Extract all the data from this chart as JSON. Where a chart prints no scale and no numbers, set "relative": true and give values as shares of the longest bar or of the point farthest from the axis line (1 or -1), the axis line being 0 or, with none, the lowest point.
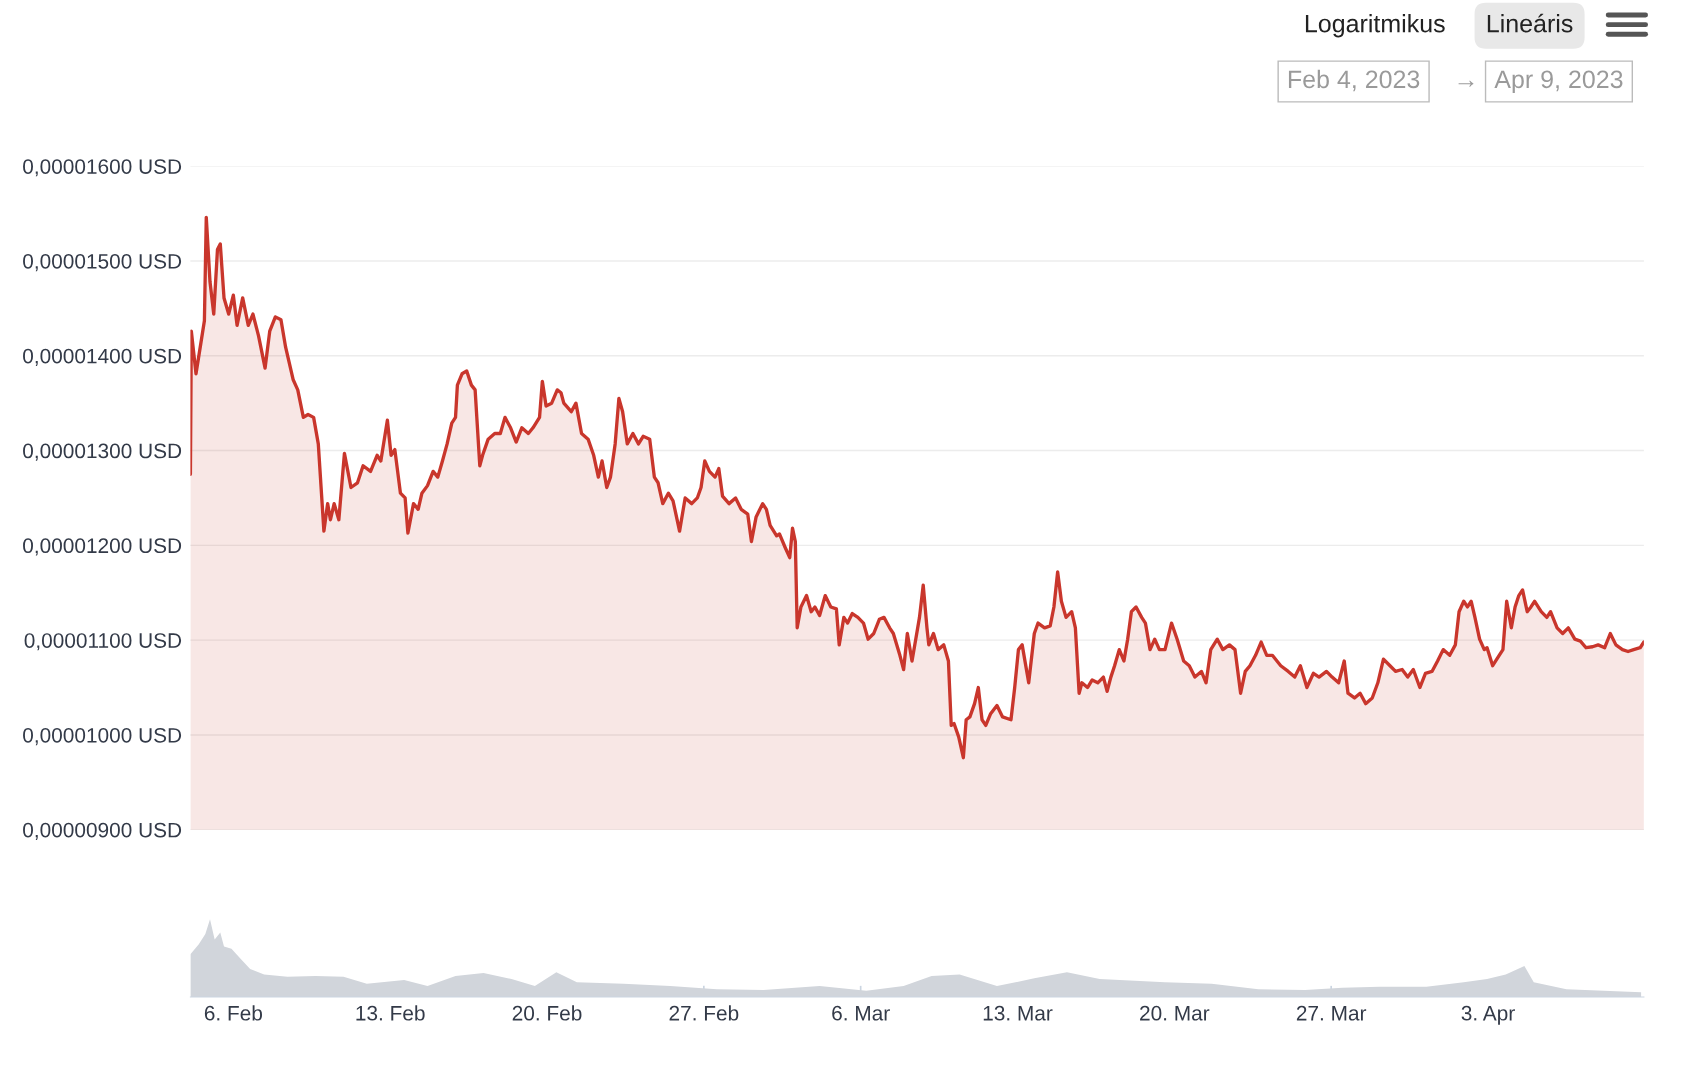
{
  "chart_data": [
    {
      "type": "area",
      "annotations": [
        "Logaritmikus",
        "Lineáris",
        "Feb 4, 2023",
        "→",
        "Apr 9, 2023"
      ],
      "x": [
        "2023-02-04T02:00",
        "2023-02-04T03:00",
        "2023-02-04T08:00",
        "2023-02-04T13:00",
        "2023-02-04T17:00",
        "2023-02-04T19:00",
        "2023-02-04T23:00",
        "2023-02-05T03:00",
        "2023-02-05T07:00",
        "2023-02-05T10:00",
        "2023-02-05T14:00",
        "2023-02-05T19:00",
        "2023-02-06T00:00",
        "2023-02-06T04:00",
        "2023-02-06T10:00",
        "2023-02-06T16:00",
        "2023-02-06T21:00",
        "2023-02-07T03:00",
        "2023-02-07T10:00",
        "2023-02-07T15:00",
        "2023-02-07T21:00",
        "2023-02-08T03:00",
        "2023-02-08T08:00",
        "2023-02-08T16:00",
        "2023-02-08T21:00",
        "2023-02-09T03:00",
        "2023-02-09T08:00",
        "2023-02-09T14:00",
        "2023-02-09T19:00",
        "2023-02-10T01:00",
        "2023-02-10T05:00",
        "2023-02-10T08:00",
        "2023-02-10T12:00",
        "2023-02-10T17:00",
        "2023-02-10T23:00",
        "2023-02-11T06:00",
        "2023-02-11T13:00",
        "2023-02-11T19:00",
        "2023-02-12T03:00",
        "2023-02-12T10:00",
        "2023-02-12T14:00",
        "2023-02-12T21:00",
        "2023-02-13T01:00",
        "2023-02-13T05:00",
        "2023-02-13T11:00",
        "2023-02-13T16:00",
        "2023-02-13T19:00",
        "2023-02-14T01:00",
        "2023-02-14T06:00",
        "2023-02-14T10:00",
        "2023-02-14T16:00",
        "2023-02-14T22:00",
        "2023-02-15T03:00",
        "2023-02-15T08:00",
        "2023-02-15T13:00",
        "2023-02-15T18:00",
        "2023-02-15T22:00",
        "2023-02-16T00:00",
        "2023-02-16T05:00",
        "2023-02-16T10:00",
        "2023-02-16T15:00",
        "2023-02-16T19:00",
        "2023-02-17T00:00",
        "2023-02-17T03:00",
        "2023-02-17T09:00",
        "2023-02-17T16:00",
        "2023-02-17T22:00",
        "2023-02-18T03:00",
        "2023-02-18T09:00",
        "2023-02-18T15:00",
        "2023-02-18T21:00",
        "2023-02-19T04:00",
        "2023-02-19T09:00",
        "2023-02-19T16:00",
        "2023-02-19T19:00",
        "2023-02-19T23:00",
        "2023-02-20T05:00",
        "2023-02-20T11:00",
        "2023-02-20T15:00",
        "2023-02-20T18:00",
        "2023-02-21T02:00",
        "2023-02-21T07:00",
        "2023-02-21T13:00",
        "2023-02-21T20:00",
        "2023-02-22T02:00",
        "2023-02-22T07:00",
        "2023-02-22T11:00",
        "2023-02-22T16:00",
        "2023-02-22T20:00",
        "2023-02-23T01:00",
        "2023-02-23T05:00",
        "2023-02-23T09:00",
        "2023-02-23T14:00",
        "2023-02-23T20:00",
        "2023-02-24T02:00",
        "2023-02-24T07:00",
        "2023-02-24T14:00",
        "2023-02-24T19:00",
        "2023-02-24T23:00",
        "2023-02-25T04:00",
        "2023-02-25T10:00",
        "2023-02-25T15:00",
        "2023-02-25T22:00",
        "2023-02-26T04:00",
        "2023-02-26T11:00",
        "2023-02-26T17:00",
        "2023-02-26T21:00",
        "2023-02-27T01:00",
        "2023-02-27T06:00",
        "2023-02-27T12:00",
        "2023-02-27T16:00",
        "2023-02-27T20:00",
        "2023-02-28T03:00",
        "2023-02-28T10:00",
        "2023-02-28T16:00",
        "2023-02-28T23:00",
        "2023-03-01T03:00",
        "2023-03-01T08:00",
        "2023-03-01T15:00",
        "2023-03-01T19:00",
        "2023-03-01T23:00",
        "2023-03-02T06:00",
        "2023-03-02T09:00",
        "2023-03-02T15:00",
        "2023-03-02T20:00",
        "2023-03-02T23:00",
        "2023-03-03T02:00",
        "2023-03-03T04:00",
        "2023-03-03T08:00",
        "2023-03-03T14:00",
        "2023-03-03T19:00",
        "2023-03-03T23:00",
        "2023-03-04T04:00",
        "2023-03-04T10:00",
        "2023-03-04T16:00",
        "2023-03-04T22:00",
        "2023-03-05T01:00",
        "2023-03-05T06:00",
        "2023-03-05T10:00",
        "2023-03-05T15:00",
        "2023-03-05T21:00",
        "2023-03-06T03:00",
        "2023-03-06T08:00",
        "2023-03-06T14:00",
        "2023-03-06T20:00",
        "2023-03-07T01:00",
        "2023-03-07T07:00",
        "2023-03-07T11:00",
        "2023-03-07T18:00",
        "2023-03-07T22:00",
        "2023-03-08T02:00",
        "2023-03-08T07:00",
        "2023-03-08T11:00",
        "2023-03-08T15:00",
        "2023-03-08T19:00",
        "2023-03-08T23:00",
        "2023-03-09T01:00",
        "2023-03-09T06:00",
        "2023-03-09T11:00",
        "2023-03-09T17:00",
        "2023-03-09T22:00",
        "2023-03-10T01:00",
        "2023-03-10T04:00",
        "2023-03-10T09:00",
        "2023-03-10T14:00",
        "2023-03-10T17:00",
        "2023-03-10T21:00",
        "2023-03-11T02:00",
        "2023-03-11T06:00",
        "2023-03-11T10:00",
        "2023-03-11T14:00",
        "2023-03-11T19:00",
        "2023-03-12T02:00",
        "2023-03-12T08:00",
        "2023-03-12T17:00",
        "2023-03-12T21:00",
        "2023-03-13T01:00",
        "2023-03-13T05:00",
        "2023-03-13T12:00",
        "2023-03-13T18:00",
        "2023-03-13T22:00",
        "2023-03-14T05:00",
        "2023-03-14T11:00",
        "2023-03-14T15:00",
        "2023-03-14T19:00",
        "2023-03-14T23:00",
        "2023-03-15T04:00",
        "2023-03-15T10:00",
        "2023-03-15T14:00",
        "2023-03-15T18:00",
        "2023-03-15T21:00",
        "2023-03-16T03:00",
        "2023-03-16T08:00",
        "2023-03-16T14:00",
        "2023-03-16T20:00",
        "2023-03-17T00:00",
        "2023-03-17T04:00",
        "2023-03-17T08:00",
        "2023-03-17T13:00",
        "2023-03-17T18:00",
        "2023-03-17T22:00",
        "2023-03-18T02:00",
        "2023-03-18T07:00",
        "2023-03-18T13:00",
        "2023-03-18T17:00",
        "2023-03-18T22:00",
        "2023-03-19T03:00",
        "2023-03-19T08:00",
        "2023-03-19T14:00",
        "2023-03-19T21:00",
        "2023-03-20T03:00",
        "2023-03-20T10:00",
        "2023-03-20T16:00",
        "2023-03-20T22:00",
        "2023-03-21T05:00",
        "2023-03-21T10:00",
        "2023-03-21T15:00",
        "2023-03-21T22:00",
        "2023-03-22T04:00",
        "2023-03-22T11:00",
        "2023-03-22T17:00",
        "2023-03-22T23:00",
        "2023-03-23T04:00",
        "2023-03-23T09:00",
        "2023-03-23T15:00",
        "2023-03-23T21:00",
        "2023-03-24T03:00",
        "2023-03-24T09:00",
        "2023-03-24T18:00",
        "2023-03-25T02:00",
        "2023-03-25T09:00",
        "2023-03-25T15:00",
        "2023-03-25T22:00",
        "2023-03-26T05:00",
        "2023-03-26T11:00",
        "2023-03-26T19:00",
        "2023-03-27T01:00",
        "2023-03-27T08:00",
        "2023-03-27T14:00",
        "2023-03-27T18:00",
        "2023-03-28T01:00",
        "2023-03-28T07:00",
        "2023-03-28T13:00",
        "2023-03-28T20:00",
        "2023-03-29T02:00",
        "2023-03-29T08:00",
        "2023-03-29T15:00",
        "2023-03-29T21:00",
        "2023-03-30T04:00",
        "2023-03-30T10:00",
        "2023-03-30T16:00",
        "2023-03-30T23:00",
        "2023-03-31T05:00",
        "2023-03-31T12:00",
        "2023-03-31T18:00",
        "2023-04-01T00:00",
        "2023-04-01T07:00",
        "2023-04-01T13:00",
        "2023-04-01T17:00",
        "2023-04-01T22:00",
        "2023-04-02T02:00",
        "2023-04-02T06:00",
        "2023-04-02T10:00",
        "2023-04-02T15:00",
        "2023-04-02T20:00",
        "2023-04-02T23:00",
        "2023-04-03T05:00",
        "2023-04-03T12:00",
        "2023-04-03T16:00",
        "2023-04-03T20:00",
        "2023-04-04T01:00",
        "2023-04-04T05:00",
        "2023-04-04T09:00",
        "2023-04-04T13:00",
        "2023-04-04T18:00",
        "2023-04-04T22:00",
        "2023-04-05T02:00",
        "2023-04-05T09:00",
        "2023-04-05T15:00",
        "2023-04-05T19:00",
        "2023-04-06T02:00",
        "2023-04-06T08:00",
        "2023-04-06T14:00",
        "2023-04-06T21:00",
        "2023-04-07T03:00",
        "2023-04-07T09:00",
        "2023-04-07T16:00",
        "2023-04-07T22:00",
        "2023-04-08T05:00",
        "2023-04-08T11:00",
        "2023-04-08T17:00",
        "2023-04-09T00:00",
        "2023-04-09T06:00",
        "2023-04-09T12:00",
        "2023-04-09T19:00",
        "2023-04-09T23:00"
      ],
      "series": [
        {
          "color": "#c9362c",
          "values": [
            1.275e-05,
            1.426e-05,
            1.381e-05,
            1.412e-05,
            1.437e-05,
            1.546e-05,
            1.478e-05,
            1.444e-05,
            1.512e-05,
            1.518e-05,
            1.461e-05,
            1.444e-05,
            1.464e-05,
            1.432e-05,
            1.461e-05,
            1.432e-05,
            1.444e-05,
            1.421e-05,
            1.387e-05,
            1.426e-05,
            1.441e-05,
            1.438e-05,
            1.409e-05,
            1.375e-05,
            1.364e-05,
            1.335e-05,
            1.338e-05,
            1.335e-05,
            1.307e-05,
            1.215e-05,
            1.244e-05,
            1.227e-05,
            1.244e-05,
            1.227e-05,
            1.297e-05,
            1.261e-05,
            1.266e-05,
            1.284e-05,
            1.278e-05,
            1.295e-05,
            1.289e-05,
            1.332e-05,
            1.295e-05,
            1.301e-05,
            1.255e-05,
            1.25e-05,
            1.213e-05,
            1.244e-05,
            1.238e-05,
            1.255e-05,
            1.263e-05,
            1.278e-05,
            1.272e-05,
            1.289e-05,
            1.307e-05,
            1.329e-05,
            1.335e-05,
            1.369e-05,
            1.381e-05,
            1.384e-05,
            1.369e-05,
            1.364e-05,
            1.284e-05,
            1.295e-05,
            1.312e-05,
            1.318e-05,
            1.318e-05,
            1.335e-05,
            1.324e-05,
            1.309e-05,
            1.324e-05,
            1.318e-05,
            1.324e-05,
            1.335e-05,
            1.373e-05,
            1.347e-05,
            1.35e-05,
            1.364e-05,
            1.361e-05,
            1.35e-05,
            1.341e-05,
            1.35e-05,
            1.318e-05,
            1.312e-05,
            1.295e-05,
            1.272e-05,
            1.289e-05,
            1.261e-05,
            1.272e-05,
            1.307e-05,
            1.355e-05,
            1.341e-05,
            1.307e-05,
            1.318e-05,
            1.307e-05,
            1.315e-05,
            1.312e-05,
            1.272e-05,
            1.266e-05,
            1.244e-05,
            1.255e-05,
            1.247e-05,
            1.215e-05,
            1.25e-05,
            1.244e-05,
            1.25e-05,
            1.261e-05,
            1.289e-05,
            1.278e-05,
            1.272e-05,
            1.281e-05,
            1.252e-05,
            1.244e-05,
            1.25e-05,
            1.238e-05,
            1.233e-05,
            1.204e-05,
            1.23e-05,
            1.244e-05,
            1.238e-05,
            1.221e-05,
            1.21e-05,
            1.212e-05,
            1.198e-05,
            1.187e-05,
            1.218e-05,
            1.204e-05,
            1.113e-05,
            1.135e-05,
            1.147e-05,
            1.13e-05,
            1.135e-05,
            1.126e-05,
            1.147e-05,
            1.135e-05,
            1.133e-05,
            1.095e-05,
            1.124e-05,
            1.118e-05,
            1.128e-05,
            1.124e-05,
            1.118e-05,
            1.101e-05,
            1.107e-05,
            1.122e-05,
            1.124e-05,
            1.113e-05,
            1.107e-05,
            1.084e-05,
            1.069e-05,
            1.107e-05,
            1.078e-05,
            1.101e-05,
            1.124e-05,
            1.158e-05,
            1.113e-05,
            1.095e-05,
            1.107e-05,
            1.09e-05,
            1.095e-05,
            1.078e-05,
            1.01e-05,
            1.012e-05,
            9.98e-06,
            9.76e-06,
            1.016e-05,
            1.019e-05,
            1.033e-05,
            1.05e-05,
            1.016e-05,
            1.01e-05,
            1.022e-05,
            1.031e-05,
            1.019e-05,
            1.016e-05,
            1.05e-05,
            1.09e-05,
            1.095e-05,
            1.055e-05,
            1.107e-05,
            1.118e-05,
            1.113e-05,
            1.115e-05,
            1.135e-05,
            1.172e-05,
            1.141e-05,
            1.124e-05,
            1.13e-05,
            1.113e-05,
            1.044e-05,
            1.055e-05,
            1.05e-05,
            1.058e-05,
            1.055e-05,
            1.061e-05,
            1.046e-05,
            1.061e-05,
            1.073e-05,
            1.09e-05,
            1.078e-05,
            1.101e-05,
            1.13e-05,
            1.135e-05,
            1.124e-05,
            1.118e-05,
            1.09e-05,
            1.101e-05,
            1.09e-05,
            1.09e-05,
            1.118e-05,
            1.101e-05,
            1.078e-05,
            1.073e-05,
            1.061e-05,
            1.067e-05,
            1.055e-05,
            1.09e-05,
            1.101e-05,
            1.09e-05,
            1.095e-05,
            1.09e-05,
            1.044e-05,
            1.067e-05,
            1.073e-05,
            1.084e-05,
            1.098e-05,
            1.084e-05,
            1.084e-05,
            1.073e-05,
            1.067e-05,
            1.061e-05,
            1.073e-05,
            1.05e-05,
            1.065e-05,
            1.061e-05,
            1.067e-05,
            1.061e-05,
            1.055e-05,
            1.078e-05,
            1.044e-05,
            1.039e-05,
            1.044e-05,
            1.033e-05,
            1.039e-05,
            1.055e-05,
            1.08e-05,
            1.073e-05,
            1.067e-05,
            1.069e-05,
            1.061e-05,
            1.069e-05,
            1.05e-05,
            1.065e-05,
            1.067e-05,
            1.078e-05,
            1.09e-05,
            1.084e-05,
            1.095e-05,
            1.13e-05,
            1.141e-05,
            1.135e-05,
            1.141e-05,
            1.124e-05,
            1.101e-05,
            1.09e-05,
            1.092e-05,
            1.073e-05,
            1.084e-05,
            1.09e-05,
            1.141e-05,
            1.113e-05,
            1.135e-05,
            1.147e-05,
            1.153e-05,
            1.13e-05,
            1.135e-05,
            1.141e-05,
            1.13e-05,
            1.124e-05,
            1.13e-05,
            1.113e-05,
            1.107e-05,
            1.113e-05,
            1.101e-05,
            1.099e-05,
            1.092e-05,
            1.093e-05,
            1.095e-05,
            1.092e-05,
            1.107e-05,
            1.095e-05,
            1.09e-05,
            1.088e-05,
            1.09e-05,
            1.092e-05,
            1.098e-05
          ]
        }
      ],
      "xlim": [
        "2023-02-04T02:00",
        "2023-04-09T23:00"
      ],
      "ylim": [
        9e-06,
        1.6e-05
      ],
      "yticks": [
        {
          "value": 9e-06,
          "label": "0,00000900 USD"
        },
        {
          "value": 1e-05,
          "label": "0,00001000 USD"
        },
        {
          "value": 1.1e-05,
          "label": "0,00001100 USD"
        },
        {
          "value": 1.2e-05,
          "label": "0,00001200 USD"
        },
        {
          "value": 1.3e-05,
          "label": "0,00001300 USD"
        },
        {
          "value": 1.4e-05,
          "label": "0,00001400 USD"
        },
        {
          "value": 1.5e-05,
          "label": "0,00001500 USD"
        },
        {
          "value": 1.6e-05,
          "label": "0,00001600 USD"
        }
      ],
      "grid": "y",
      "tick_labels": "y"
    },
    {
      "type": "area",
      "relative": true,
      "x": [
        "2023-02-04T02:00",
        "2023-02-04T11:00",
        "2023-02-04T18:00",
        "2023-02-04T23:00",
        "2023-02-05T04:00",
        "2023-02-05T10:00",
        "2023-02-05T14:00",
        "2023-02-05T22:00",
        "2023-02-06T08:00",
        "2023-02-06T18:00",
        "2023-02-07T09:00",
        "2023-02-08T10:00",
        "2023-02-09T16:00",
        "2023-02-10T22:00",
        "2023-02-11T23:00",
        "2023-02-13T15:00",
        "2023-02-14T16:00",
        "2023-02-15T22:00",
        "2023-02-17T04:00",
        "2023-02-18T10:00",
        "2023-02-19T11:00",
        "2023-02-20T10:00",
        "2023-02-21T08:00",
        "2023-02-23T10:00",
        "2023-02-25T12:00",
        "2023-02-27T14:00",
        "2023-03-01T16:00",
        "2023-03-04T04:00",
        "2023-03-06T06:00",
        "2023-03-07T22:00",
        "2023-03-09T04:00",
        "2023-03-10T10:00",
        "2023-03-12T02:00",
        "2023-03-13T18:00",
        "2023-03-15T05:00",
        "2023-03-16T16:00",
        "2023-03-19T14:00",
        "2023-03-21T16:00",
        "2023-03-23T18:00",
        "2023-03-25T20:00",
        "2023-03-27T12:00",
        "2023-03-29T04:00",
        "2023-03-31T06:00",
        "2023-04-01T22:00",
        "2023-04-02T23:00",
        "2023-04-03T19:00",
        "2023-04-04T15:00",
        "2023-04-05T01:00",
        "2023-04-06T12:00",
        "2023-04-08T04:00",
        "2023-04-09T20:00"
      ],
      "series": [
        {
          "color": "#d1d5db",
          "values": [
            0.55,
            0.68,
            0.81,
            1.0,
            0.74,
            0.83,
            0.65,
            0.62,
            0.49,
            0.36,
            0.29,
            0.26,
            0.27,
            0.26,
            0.17,
            0.22,
            0.14,
            0.27,
            0.31,
            0.23,
            0.14,
            0.32,
            0.19,
            0.17,
            0.14,
            0.1,
            0.09,
            0.14,
            0.08,
            0.14,
            0.27,
            0.29,
            0.14,
            0.24,
            0.32,
            0.23,
            0.19,
            0.17,
            0.1,
            0.09,
            0.12,
            0.13,
            0.13,
            0.19,
            0.23,
            0.29,
            0.4,
            0.19,
            0.1,
            0.08,
            0.06
          ]
        }
      ],
      "xlim": [
        "2023-02-04T02:00",
        "2023-04-09T23:00"
      ],
      "xticks": [
        {
          "value": "2023-02-06",
          "label": "6. Feb"
        },
        {
          "value": "2023-02-13",
          "label": "13. Feb"
        },
        {
          "value": "2023-02-20",
          "label": "20. Feb"
        },
        {
          "value": "2023-02-27",
          "label": "27. Feb"
        },
        {
          "value": "2023-03-06",
          "label": "6. Mar"
        },
        {
          "value": "2023-03-13",
          "label": "13. Mar"
        },
        {
          "value": "2023-03-20",
          "label": "20. Mar"
        },
        {
          "value": "2023-03-27",
          "label": "27. Mar"
        },
        {
          "value": "2023-04-03",
          "label": "3. Apr"
        }
      ],
      "tick_labels": "x"
    }
  ]
}
